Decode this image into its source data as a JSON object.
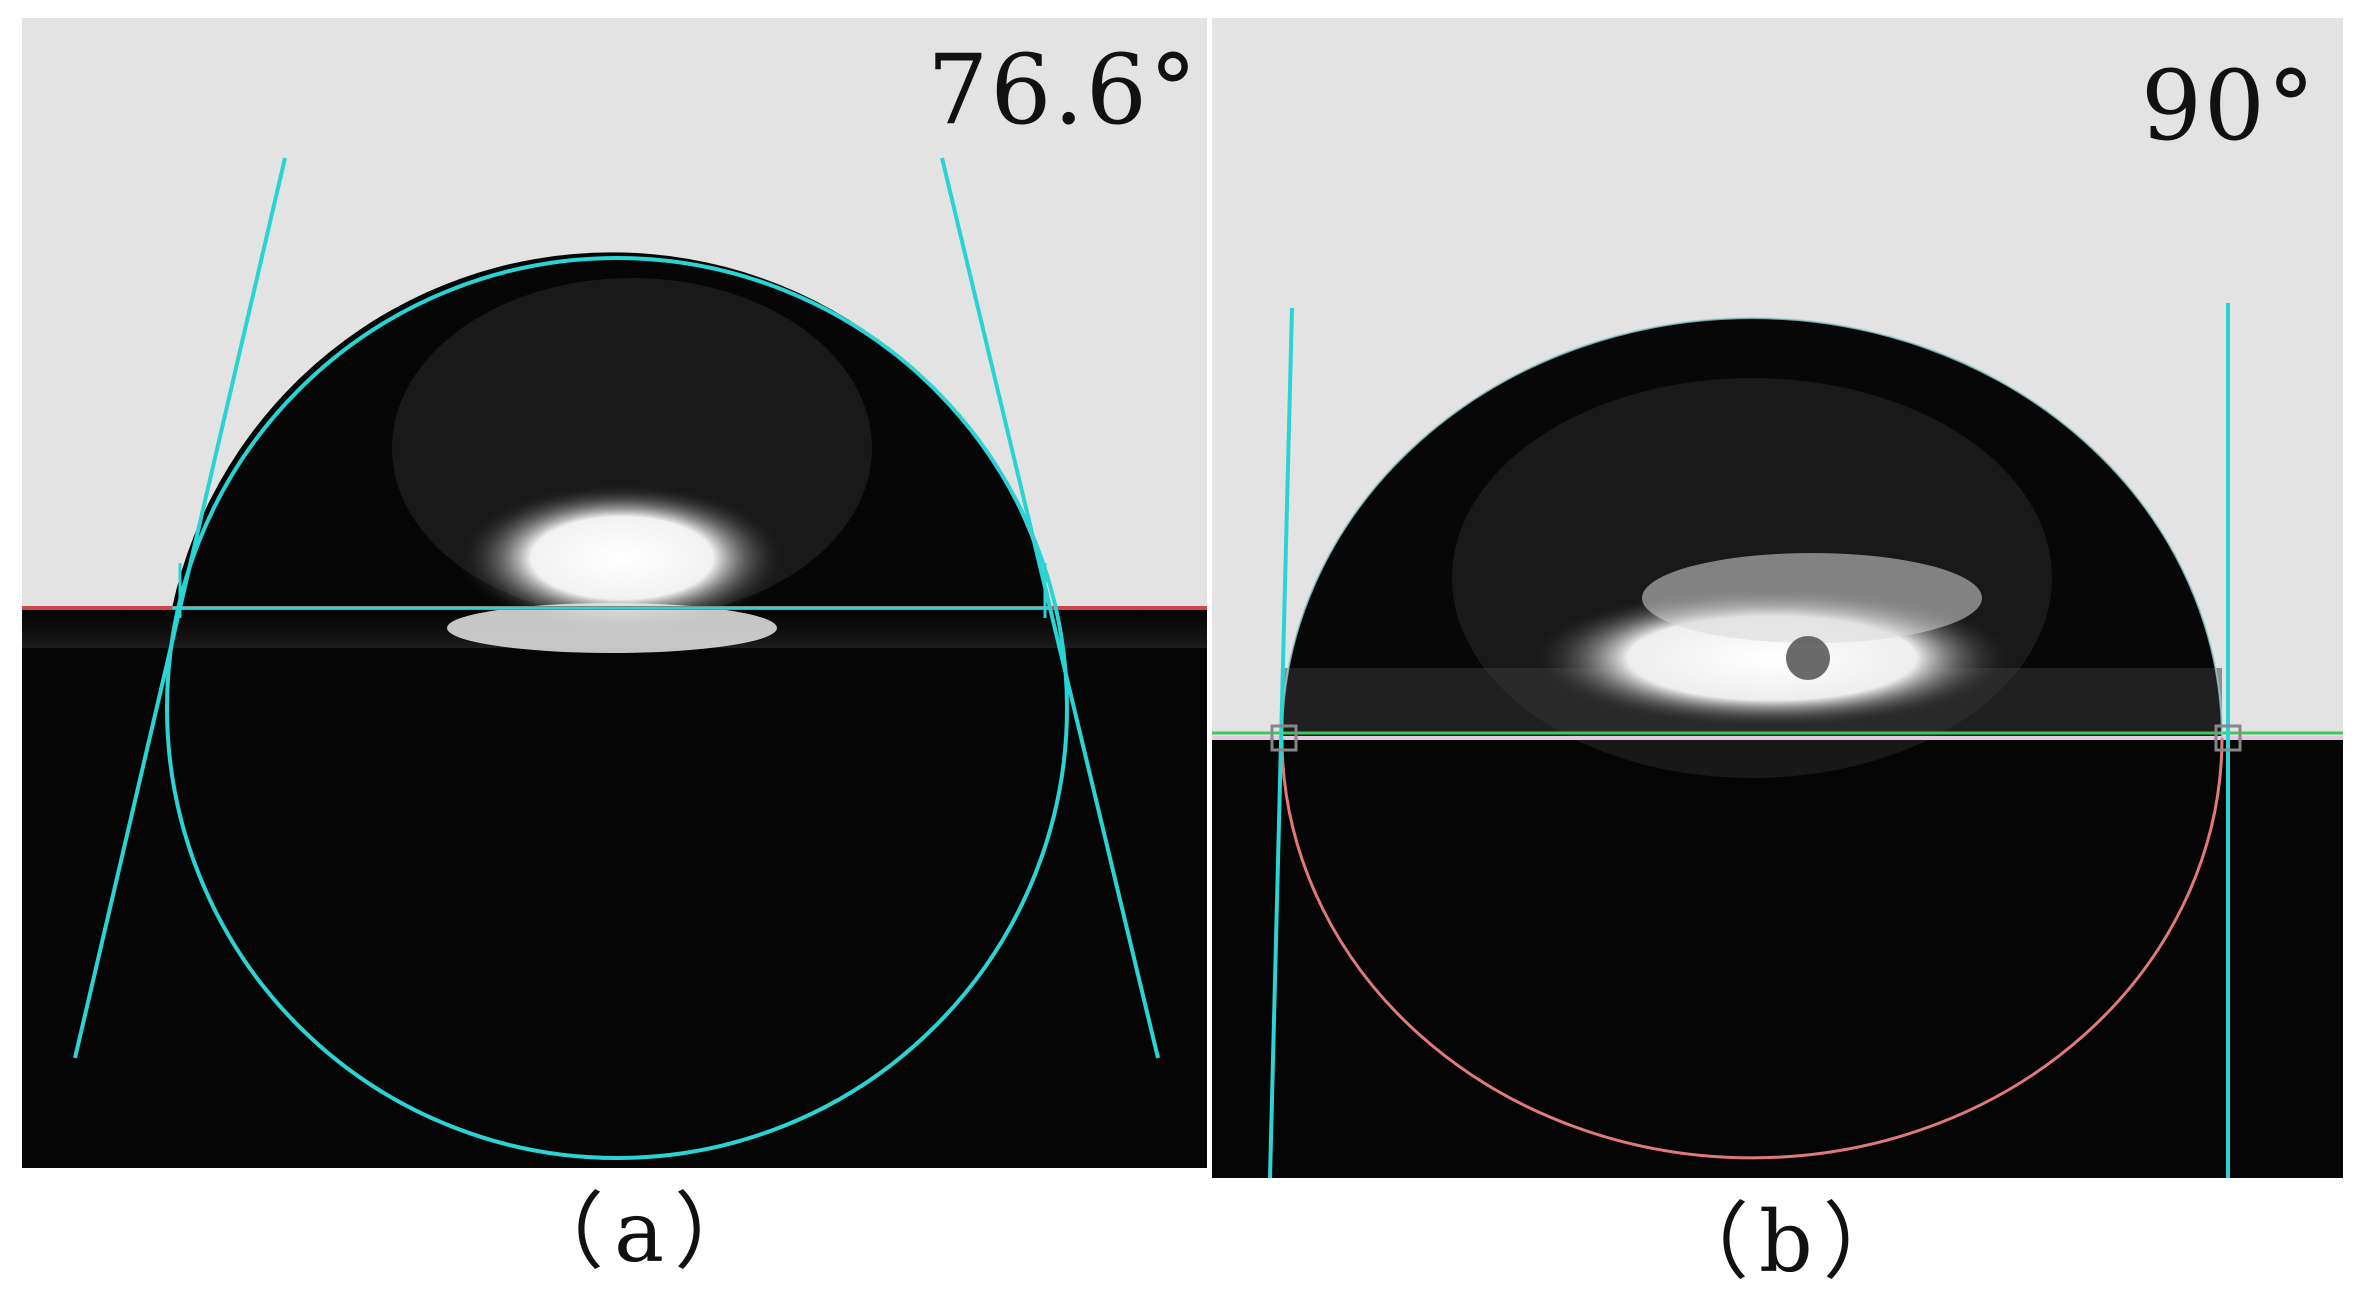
{
  "panels": [
    {
      "angle_label": "76.6°",
      "caption": "（a）",
      "contact_angle_deg": 76.6
    },
    {
      "angle_label": "90°",
      "caption": "（b）",
      "contact_angle_deg": 90
    }
  ],
  "colors": {
    "background_gray": "#e2e2e2",
    "substrate_black": "#050505",
    "fit_cyan": "#2ad4d4",
    "baseline_red": "#d0434a",
    "fit_pink": "#e07a7a",
    "baseline_green": "#3cc85a"
  }
}
